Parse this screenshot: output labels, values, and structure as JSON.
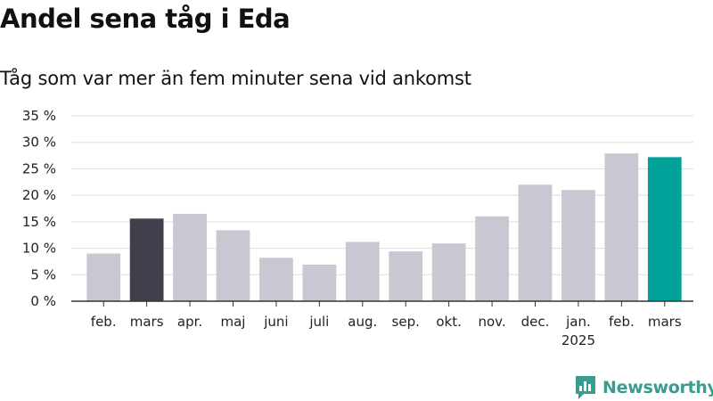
{
  "header": {
    "title": "Andel sena tåg i Eda",
    "subtitle": "Tåg som var mer än fem minuter sena vid ankomst"
  },
  "brand": {
    "name": "Newsworthy",
    "color": "#3a9b8e"
  },
  "colors": {
    "default_bar": "#c8c7d2",
    "highlight_last_year": "#403f4c",
    "highlight_current": "#00a29a",
    "grid": "#dddddd",
    "axis": "#333333"
  },
  "chart_data": {
    "type": "bar",
    "categories": [
      "feb.",
      "mars",
      "apr.",
      "maj",
      "juni",
      "juli",
      "aug.",
      "sep.",
      "okt.",
      "nov.",
      "dec.",
      "jan.",
      "feb.",
      "mars"
    ],
    "year_labels": [
      "",
      "",
      "",
      "",
      "",
      "",
      "",
      "",
      "",
      "",
      "",
      "2025",
      "",
      ""
    ],
    "values": [
      9.0,
      15.6,
      16.5,
      13.4,
      8.2,
      6.9,
      11.2,
      9.4,
      10.9,
      16.0,
      22.0,
      21.0,
      27.9,
      27.2
    ],
    "highlight": [
      "",
      "last_year",
      "",
      "",
      "",
      "",
      "",
      "",
      "",
      "",
      "",
      "",
      "",
      "current"
    ],
    "y_ticks": [
      "0 %",
      "5 %",
      "10 %",
      "15 %",
      "20 %",
      "25 %",
      "30 %",
      "35 %"
    ],
    "ylim": [
      0,
      35
    ],
    "y_step": 5,
    "grid": true
  }
}
